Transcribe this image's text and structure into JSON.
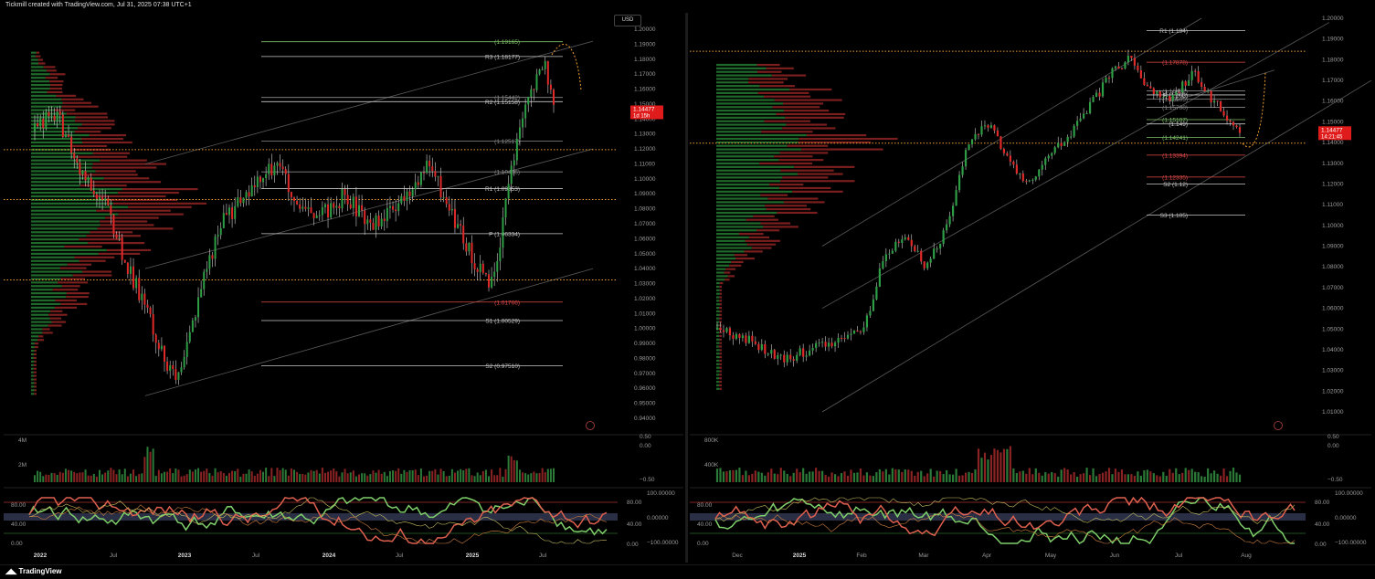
{
  "header": {
    "title": "Tickmill created with TradingView.com, Jul 31, 2025 07:38 UTC+1"
  },
  "footer": {
    "brand": "TradingView"
  },
  "colors": {
    "up": "#2e9e45",
    "down": "#e02a2a",
    "accent": "#f0a030",
    "price_label_bg": "#e01b1b",
    "grid": "#1a1a1a",
    "text": "#9a9a9a"
  },
  "left": {
    "currency_button": "USD",
    "price_axis": [
      "1.20000",
      "1.19000",
      "1.18000",
      "1.17000",
      "1.16000",
      "1.15000",
      "1.14000",
      "1.13000",
      "1.12000",
      "1.11000",
      "1.10000",
      "1.09000",
      "1.08000",
      "1.07000",
      "1.06000",
      "1.05000",
      "1.04000",
      "1.03000",
      "1.02000",
      "1.01000",
      "1.00000",
      "0.99000",
      "0.98000",
      "0.97000",
      "0.96000",
      "0.95000",
      "0.94000"
    ],
    "levels": [
      {
        "label": "(1.19165)",
        "value": "1.19165",
        "color": "green"
      },
      {
        "label": "R3 (1.18177)",
        "value": "1.18177",
        "color": "white"
      },
      {
        "label": "(1.15442)",
        "value": "1.15442",
        "color": "gray"
      },
      {
        "label": "R2 (1.15158)",
        "value": "1.15158",
        "color": "white"
      },
      {
        "label": "(1.12517)",
        "value": "1.12517",
        "color": "gray"
      },
      {
        "label": "(1.10466)",
        "value": "1.10466",
        "color": "gray"
      },
      {
        "label": "R1 (1.09353)",
        "value": "1.09353",
        "color": "white"
      },
      {
        "label": "P (1.06334)",
        "value": "1.06334",
        "color": "white"
      },
      {
        "label": "(1.01766)",
        "value": "1.01766",
        "color": "red"
      },
      {
        "label": "S1 (1.00529)",
        "value": "1.00529",
        "color": "white"
      },
      {
        "label": "S2 (0.97510)",
        "value": "0.97510",
        "color": "white"
      }
    ],
    "price_label": {
      "price": "1.14477",
      "countdown": "1d 15h"
    },
    "volume_axis": [
      "4M",
      "2M"
    ],
    "indicator_axis_left": [
      "80.00",
      "40.00",
      "0.00"
    ],
    "indicator_axis_right": [
      "0.50",
      "0.00",
      "−0.50",
      "100.00000",
      "0.00000",
      "−100.00000",
      "80.00",
      "40.00",
      "0.00"
    ],
    "time_axis": [
      "2022",
      "Jul",
      "2023",
      "Jul",
      "2024",
      "Jul",
      "2025",
      "Jul"
    ]
  },
  "right": {
    "price_axis": [
      "1.20000",
      "1.19000",
      "1.18000",
      "1.17000",
      "1.16000",
      "1.15000",
      "1.14000",
      "1.13000",
      "1.12000",
      "1.11000",
      "1.10000",
      "1.09000",
      "1.08000",
      "1.07000",
      "1.06000",
      "1.05000",
      "1.04000",
      "1.03000",
      "1.02000",
      "1.01000"
    ],
    "levels": [
      {
        "label": "R1 (1.194)",
        "value": "1.194",
        "color": "white"
      },
      {
        "label": "(1.17878)",
        "value": "1.17878",
        "color": "red"
      },
      {
        "label": "(1.16492)",
        "value": "1.16492",
        "color": "gray"
      },
      {
        "label": "P (1.163)",
        "value": "1.163",
        "color": "white"
      },
      {
        "label": "(1.16105)",
        "value": "1.16105",
        "color": "gray"
      },
      {
        "label": "(1.15700)",
        "value": "1.15700",
        "color": "gray"
      },
      {
        "label": "(1.15107)",
        "value": "1.15107",
        "color": "green"
      },
      {
        "label": "(1.149)",
        "value": "1.149",
        "color": "white"
      },
      {
        "label": "(1.14241)",
        "value": "1.14241",
        "color": "green"
      },
      {
        "label": "(1.13394)",
        "value": "1.13394",
        "color": "red"
      },
      {
        "label": "(1.12335)",
        "value": "1.12335",
        "color": "red"
      },
      {
        "label": "S2 (1.12)",
        "value": "1.12",
        "color": "white"
      },
      {
        "label": "S3 (1.105)",
        "value": "1.105",
        "color": "white"
      }
    ],
    "price_label": {
      "price": "1.14477",
      "countdown": "14:21:45"
    },
    "volume_axis": [
      "800K",
      "400K"
    ],
    "indicator_axis_left": [
      "80.00",
      "40.00",
      "0.00"
    ],
    "indicator_axis_right": [
      "0.50",
      "0.00",
      "−0.50",
      "100.00000",
      "0.00000",
      "−100.00000",
      "80.00",
      "40.00",
      "0.00"
    ],
    "time_axis": [
      "Dec",
      "2025",
      "Feb",
      "Mar",
      "Apr",
      "May",
      "Jun",
      "Jul",
      "Aug"
    ]
  }
}
